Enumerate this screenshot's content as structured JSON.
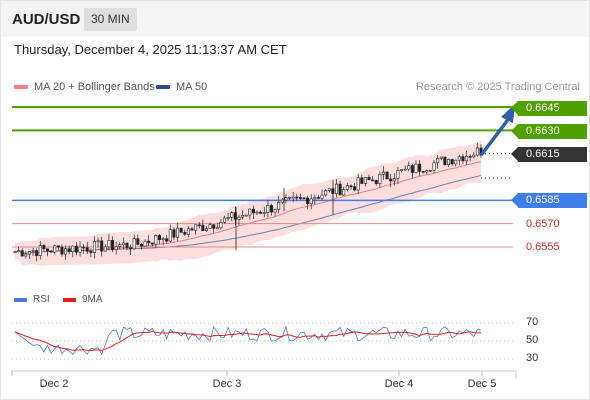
{
  "header": {
    "symbol": "AUD/USD",
    "timeframe": "30 MIN"
  },
  "datetime": "Thursday, December 4, 2025 11:13:37 AM CET",
  "legend": {
    "ma20": {
      "label": "MA 20 + Bollinger Bands",
      "color": "#f08080"
    },
    "ma50": {
      "label": "MA 50",
      "color": "#2b4f8c"
    }
  },
  "research": "Research © 2025 Trading Central",
  "levels": [
    {
      "value": "0.6645",
      "kind": "resistance",
      "color": "#4fa000"
    },
    {
      "value": "0.6630",
      "kind": "resistance",
      "color": "#4fa000"
    },
    {
      "value": "0.6615",
      "kind": "last",
      "color": "#333333"
    },
    {
      "value": "0.6585",
      "kind": "pivot",
      "color": "#3f7ee8"
    },
    {
      "value": "0.6570",
      "kind": "support",
      "color": "#d22a2a"
    },
    {
      "value": "0.6555",
      "kind": "support",
      "color": "#d22a2a"
    }
  ],
  "rsi_legend": {
    "rsi": {
      "label": "RSI",
      "color": "#4a7bd8"
    },
    "ma": {
      "label": "9MA",
      "color": "#e02020"
    }
  },
  "rsi_ticks": [
    "70",
    "50",
    "30"
  ],
  "x_labels": [
    "Dec 2",
    "Dec 3",
    "Dec 4",
    "Dec 5"
  ],
  "chart_data": {
    "type": "candlestick",
    "y_range": [
      0.6548,
      0.665
    ],
    "levels": [
      0.6645,
      0.663,
      0.6615,
      0.6585,
      0.657,
      0.6555
    ],
    "rsi_range": [
      20,
      80
    ],
    "rsi_levels": [
      70,
      50,
      30
    ]
  }
}
